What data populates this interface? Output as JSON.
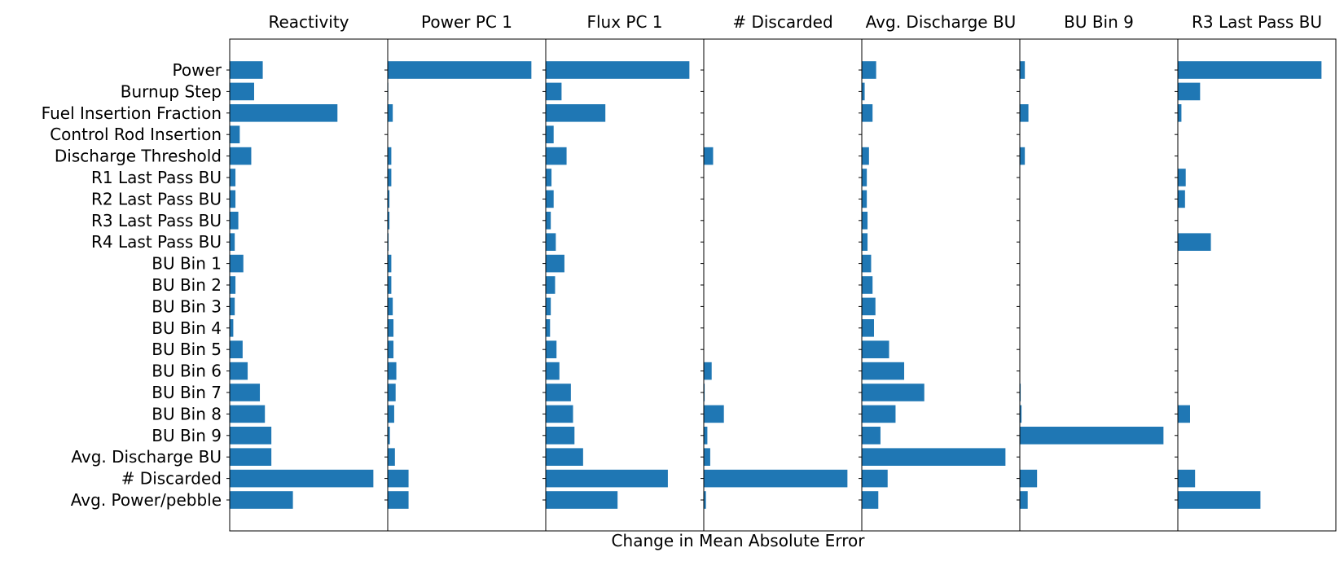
{
  "chart_data": {
    "type": "bar",
    "orientation": "horizontal",
    "xlabel": "Change in Mean Absolute Error",
    "bar_color": "#1f77b4",
    "categories": [
      "Power",
      "Burnup Step",
      "Fuel Insertion Fraction",
      "Control Rod Insertion",
      "Discharge Threshold",
      "R1 Last Pass BU",
      "R2 Last Pass BU",
      "R3 Last Pass BU",
      "R4 Last Pass BU",
      "BU Bin 1",
      "BU Bin 2",
      "BU Bin 3",
      "BU Bin 4",
      "BU Bin 5",
      "BU Bin 6",
      "BU Bin 7",
      "BU Bin 8",
      "BU Bin 9",
      "Avg. Discharge BU",
      "# Discarded",
      "Avg. Power/pebble"
    ],
    "panels": [
      {
        "title": "Reactivity",
        "xlim": [
          0,
          1.1
        ],
        "values": [
          0.23,
          0.17,
          0.75,
          0.07,
          0.15,
          0.04,
          0.04,
          0.06,
          0.035,
          0.095,
          0.04,
          0.035,
          0.025,
          0.09,
          0.125,
          0.21,
          0.245,
          0.29,
          0.29,
          1.0,
          0.44
        ]
      },
      {
        "title": "Power PC 1",
        "xlim": [
          0,
          1.1
        ],
        "values": [
          1.0,
          0.004,
          0.035,
          0.0,
          0.025,
          0.025,
          0.012,
          0.012,
          0.006,
          0.025,
          0.025,
          0.035,
          0.04,
          0.04,
          0.06,
          0.055,
          0.045,
          0.015,
          0.05,
          0.145,
          0.145
        ]
      },
      {
        "title": "Flux PC 1",
        "xlim": [
          0,
          1.1
        ],
        "values": [
          1.0,
          0.11,
          0.415,
          0.055,
          0.145,
          0.04,
          0.055,
          0.035,
          0.07,
          0.13,
          0.065,
          0.035,
          0.03,
          0.075,
          0.095,
          0.175,
          0.19,
          0.2,
          0.26,
          0.85,
          0.5
        ]
      },
      {
        "title": "# Discarded",
        "xlim": [
          0,
          1.1
        ],
        "values": [
          0.0,
          0.0,
          0.0,
          0.0,
          0.065,
          0.0,
          0.0,
          0.0,
          0.0,
          0.0,
          0.0,
          0.0,
          0.0,
          0.0,
          0.055,
          0.006,
          0.14,
          0.025,
          0.045,
          1.0,
          0.015
        ]
      },
      {
        "title": "Avg. Discharge BU",
        "xlim": [
          0,
          1.1
        ],
        "values": [
          0.1,
          0.02,
          0.075,
          0.0,
          0.05,
          0.035,
          0.035,
          0.04,
          0.04,
          0.065,
          0.075,
          0.095,
          0.085,
          0.19,
          0.295,
          0.435,
          0.235,
          0.13,
          1.0,
          0.18,
          0.115
        ]
      },
      {
        "title": "BU Bin 9",
        "xlim": [
          0,
          1.1
        ],
        "values": [
          0.035,
          0.0,
          0.06,
          0.0,
          0.035,
          0.0,
          0.0,
          0.0,
          0.0,
          0.0,
          0.0,
          0.0,
          0.0,
          0.0,
          0.0,
          0.006,
          0.012,
          1.0,
          0.0,
          0.12,
          0.055
        ]
      },
      {
        "title": "R3 Last Pass BU",
        "xlim": [
          0,
          1.1
        ],
        "values": [
          1.0,
          0.155,
          0.025,
          0.0,
          0.0,
          0.055,
          0.05,
          0.0,
          0.23,
          0.0,
          0.0,
          0.0,
          0.0,
          0.0,
          0.0,
          0.0,
          0.085,
          0.0,
          0.0,
          0.12,
          0.575
        ]
      }
    ]
  }
}
